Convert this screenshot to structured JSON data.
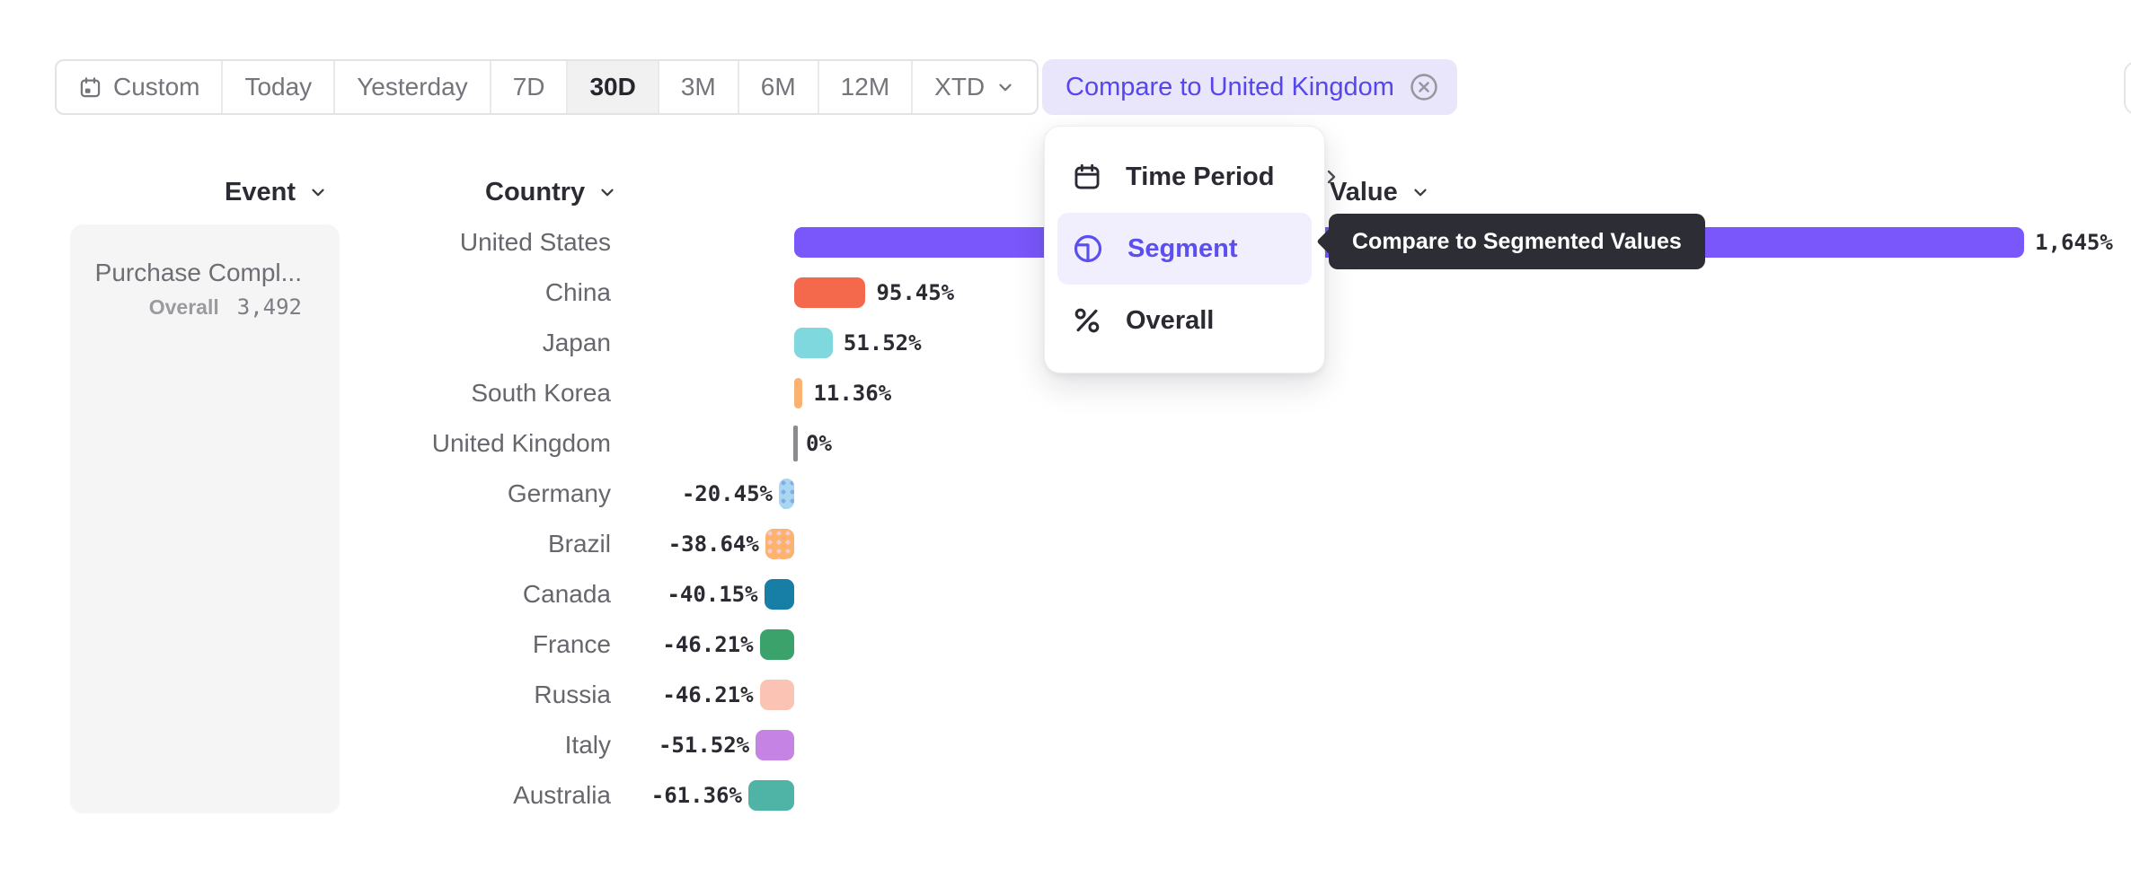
{
  "toolbar": {
    "items": [
      {
        "label": "Custom",
        "icon": "calendar-icon"
      },
      {
        "label": "Today"
      },
      {
        "label": "Yesterday"
      },
      {
        "label": "7D"
      },
      {
        "label": "30D",
        "active": true
      },
      {
        "label": "3M"
      },
      {
        "label": "6M"
      },
      {
        "label": "12M"
      },
      {
        "label": "XTD",
        "chevron": true
      }
    ],
    "active_item": "30D"
  },
  "compare_pill": {
    "label": "Compare to United Kingdom",
    "close_icon": "close-circle-icon"
  },
  "menu": {
    "items": [
      {
        "label": "Time Period",
        "icon": "calendar-icon",
        "has_submenu": true
      },
      {
        "label": "Segment",
        "icon": "segment-icon",
        "active": true
      },
      {
        "label": "Overall",
        "icon": "percent-icon"
      }
    ]
  },
  "tooltip": {
    "text": "Compare to Segmented Values"
  },
  "columns": {
    "event": "Event",
    "country": "Country",
    "value": "Value"
  },
  "event_panel": {
    "title": "Purchase Compl...",
    "overall_label": "Overall",
    "overall_value": "3,492"
  },
  "chart_data": {
    "type": "bar",
    "orientation": "horizontal",
    "unit": "%",
    "categories": [
      "United States",
      "China",
      "Japan",
      "South Korea",
      "United Kingdom",
      "Germany",
      "Brazil",
      "Canada",
      "France",
      "Russia",
      "Italy",
      "Australia"
    ],
    "values": [
      1645,
      95.45,
      51.52,
      11.36,
      0,
      -20.45,
      -38.64,
      -40.15,
      -46.21,
      -46.21,
      -51.52,
      -61.36
    ],
    "value_labels": [
      "1,645%",
      "95.45%",
      "51.52%",
      "11.36%",
      "0%",
      "-20.45%",
      "-38.64%",
      "-40.15%",
      "-46.21%",
      "-46.21%",
      "-51.52%",
      "-61.36%"
    ],
    "bar_colors": [
      "#7957FA",
      "#F4694B",
      "#7ED8DE",
      "#FBB271",
      "#8A8A8F",
      "#A9D7F2",
      "#FBB36E",
      "#177FA5",
      "#3CA26C",
      "#FBC3B4",
      "#C583E3",
      "#4FB3A5"
    ],
    "bar_patterns": [
      null,
      null,
      null,
      null,
      null,
      "dots",
      "dots",
      null,
      null,
      null,
      null,
      null
    ],
    "dot_colors": [
      null,
      null,
      null,
      null,
      null,
      "#86ABE9",
      "#F6C9D4",
      null,
      null,
      null,
      null,
      null
    ],
    "baseline_category": "United Kingdom",
    "xlim": [
      -70,
      1700
    ],
    "grid": false,
    "legend": false
  },
  "colors": {
    "accent_purple": "#5B4FF0",
    "pill_bg": "#E9E6FC",
    "menu_highlight_bg": "#F1EEFD",
    "tooltip_bg": "#2D2D36",
    "panel_bg": "#F5F5F6",
    "toolbar_border": "#E3E3E6",
    "active_cell_bg": "#F1F1F2",
    "label_gray": "#66666D",
    "value_text": "#2B2B33"
  }
}
